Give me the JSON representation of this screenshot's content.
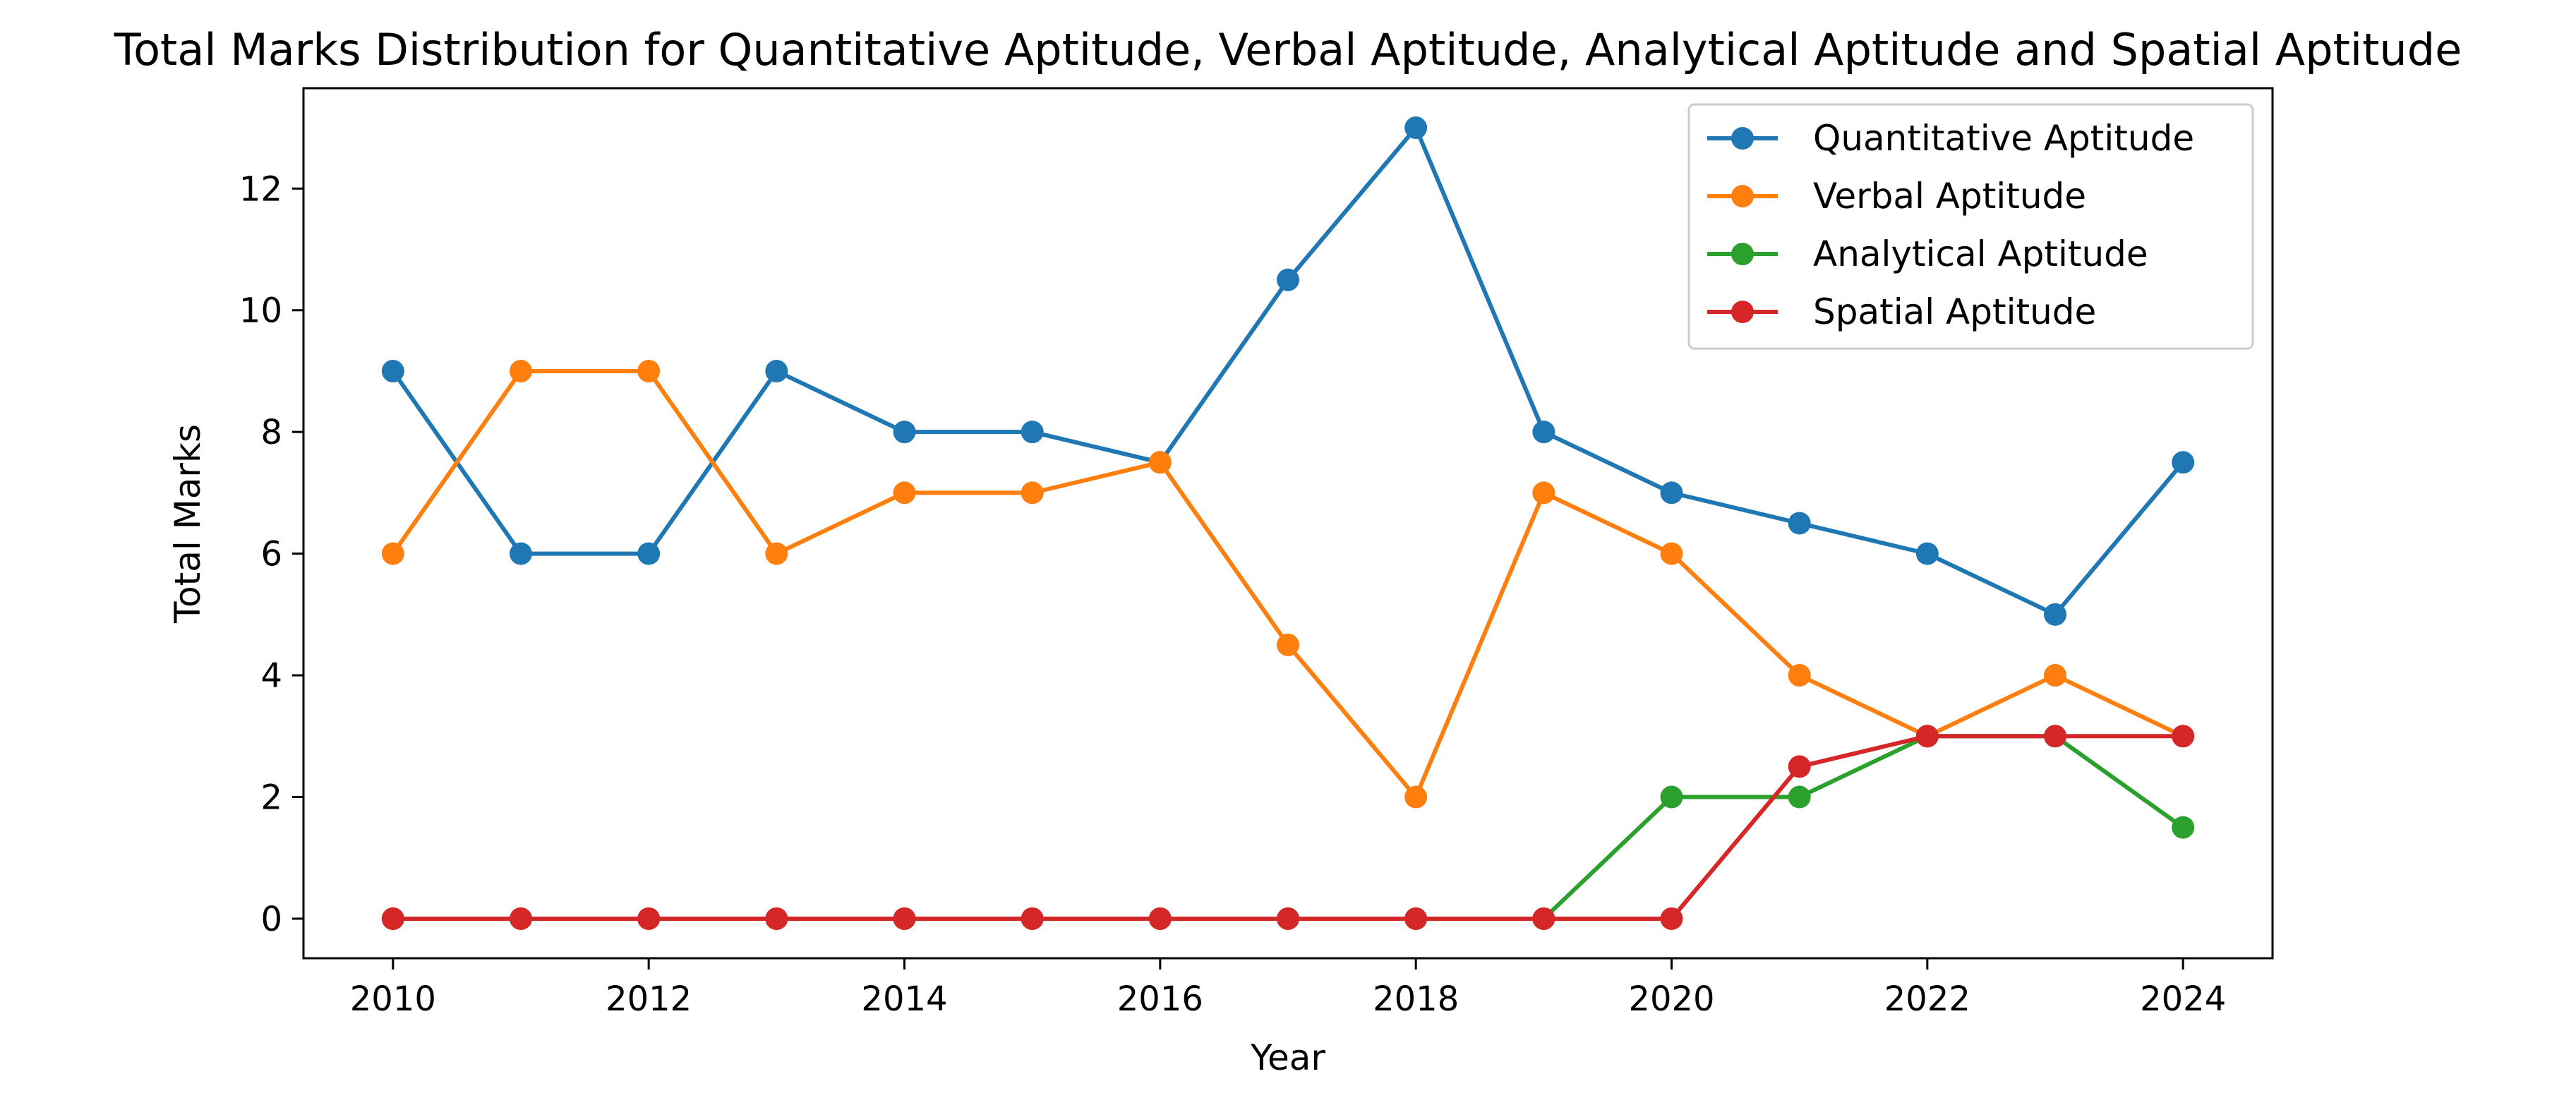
{
  "chart_data": {
    "type": "line",
    "title": "Total Marks Distribution for Quantitative Aptitude, Verbal Aptitude, Analytical Aptitude and Spatial Aptitude",
    "xlabel": "Year",
    "ylabel": "Total Marks",
    "x": [
      2010,
      2011,
      2012,
      2013,
      2014,
      2015,
      2016,
      2017,
      2018,
      2019,
      2020,
      2021,
      2022,
      2023,
      2024
    ],
    "xlim": [
      2009.3,
      2024.7
    ],
    "ylim": [
      -0.65,
      13.65
    ],
    "xticks": [
      2010,
      2012,
      2014,
      2016,
      2018,
      2020,
      2022,
      2024
    ],
    "yticks": [
      0,
      2,
      4,
      6,
      8,
      10,
      12
    ],
    "grid": false,
    "legend_position": "top-right",
    "series": [
      {
        "name": "Quantitative Aptitude",
        "color": "#1f77b4",
        "values": [
          9,
          6,
          6,
          9,
          8,
          8,
          7.5,
          10.5,
          13,
          8,
          7,
          6.5,
          6,
          5,
          7.5
        ]
      },
      {
        "name": "Verbal Aptitude",
        "color": "#ff7f0e",
        "values": [
          6,
          9,
          9,
          6,
          7,
          7,
          7.5,
          4.5,
          2,
          7,
          6,
          4,
          3,
          4,
          3
        ]
      },
      {
        "name": "Analytical Aptitude",
        "color": "#2ca02c",
        "values": [
          0,
          0,
          0,
          0,
          0,
          0,
          0,
          0,
          0,
          0,
          2,
          2,
          3,
          3,
          1.5
        ]
      },
      {
        "name": "Spatial Aptitude",
        "color": "#d62728",
        "values": [
          0,
          0,
          0,
          0,
          0,
          0,
          0,
          0,
          0,
          0,
          0,
          2.5,
          3,
          3,
          3
        ]
      }
    ]
  }
}
